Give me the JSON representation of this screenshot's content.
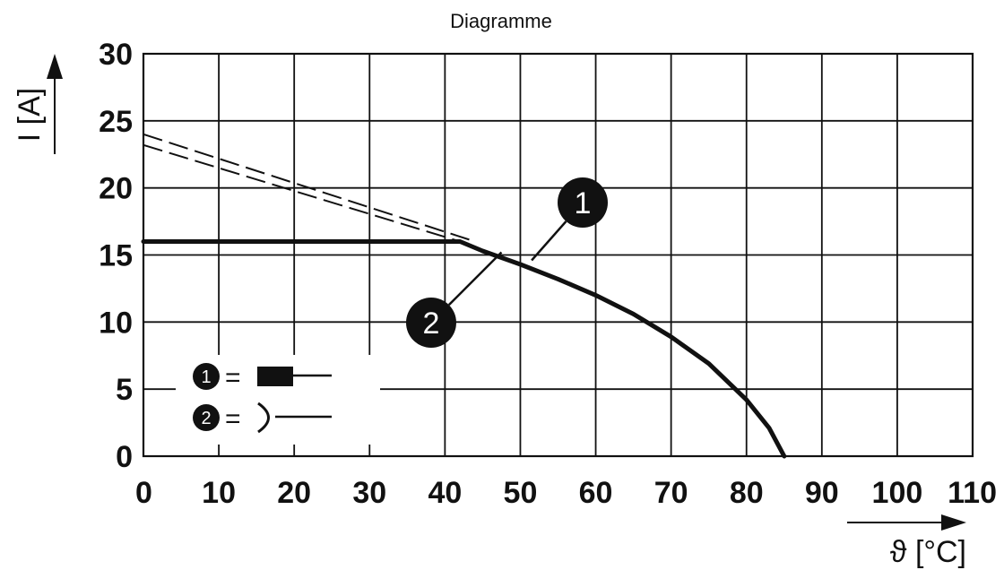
{
  "chart_data": {
    "type": "line",
    "title": "Diagramme",
    "xlabel": "ϑ [°C]",
    "ylabel": "I [A]",
    "xlim": [
      0,
      110
    ],
    "ylim": [
      0,
      30
    ],
    "x_ticks": [
      "0",
      "10",
      "20",
      "30",
      "40",
      "50",
      "60",
      "70",
      "80",
      "90",
      "100",
      "110"
    ],
    "y_ticks": [
      "0",
      "5",
      "10",
      "15",
      "20",
      "25",
      "30"
    ],
    "grid": true,
    "series": [
      {
        "style": "solid",
        "points": [
          [
            0,
            16
          ],
          [
            42,
            16
          ],
          [
            45,
            15.3
          ],
          [
            50,
            14.3
          ],
          [
            55,
            13.2
          ],
          [
            60,
            12
          ],
          [
            65,
            10.6
          ],
          [
            70,
            8.9
          ],
          [
            75,
            6.9
          ],
          [
            80,
            4.2
          ],
          [
            83,
            2.1
          ],
          [
            85,
            0
          ]
        ]
      },
      {
        "style": "dashed",
        "points": [
          [
            0,
            24
          ],
          [
            44,
            16
          ]
        ]
      },
      {
        "style": "dashed",
        "points": [
          [
            0,
            23.2
          ],
          [
            42,
            16
          ]
        ]
      }
    ],
    "annotations": [
      {
        "label": "1",
        "x": 51.5,
        "y": 14.6
      },
      {
        "label": "2",
        "x": 47.5,
        "y": 15.2
      }
    ],
    "legend": {
      "placement": "lower-left",
      "entries": [
        {
          "marker": "1",
          "symbol": "pin-with-block",
          "equals": "="
        },
        {
          "marker": "2",
          "symbol": "socket-cup",
          "equals": "="
        }
      ]
    }
  }
}
